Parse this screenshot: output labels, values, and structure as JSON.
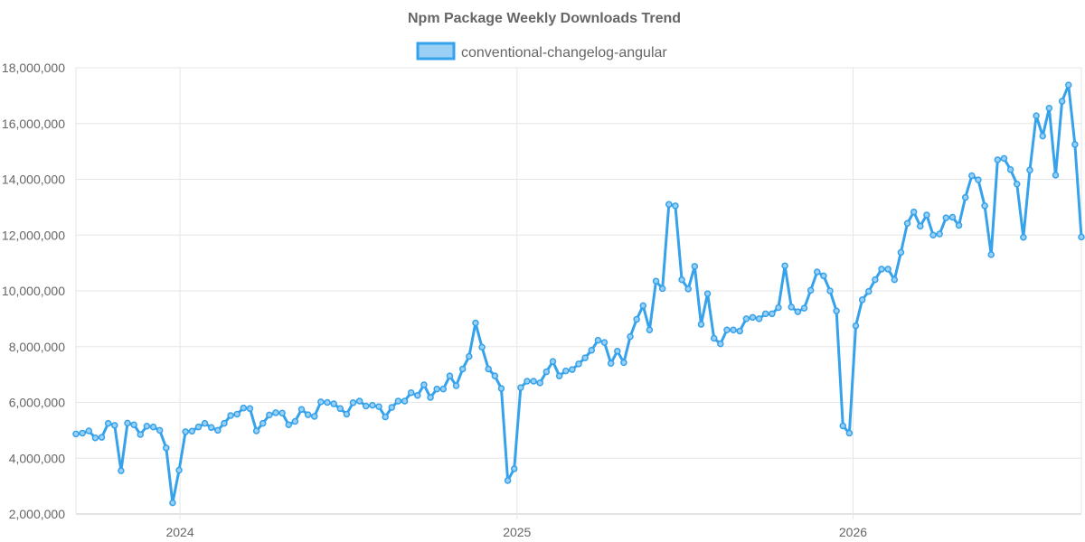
{
  "chart_data": {
    "type": "line",
    "title": "Npm Package Weekly Downloads Trend",
    "xlabel": "",
    "ylabel": "",
    "ylim": [
      2000000,
      18000000
    ],
    "y_ticks": [
      2000000,
      4000000,
      6000000,
      8000000,
      10000000,
      12000000,
      14000000,
      16000000,
      18000000
    ],
    "y_tick_labels": [
      "2,000,000",
      "4,000,000",
      "6,000,000",
      "8,000,000",
      "10,000,000",
      "12,000,000",
      "14,000,000",
      "16,000,000",
      "18,000,000"
    ],
    "x_ticks": [
      "2024",
      "2025",
      "2026"
    ],
    "x_start": "2023-09-10",
    "x_step_days": 7,
    "grid": true,
    "legend_position": "top",
    "series_color": "#36a2eb",
    "series_fill": "#9ad0f5",
    "series": [
      {
        "name": "conventional-changelog-angular",
        "values": [
          4870000,
          4900000,
          4980000,
          4730000,
          4750000,
          5250000,
          5180000,
          3550000,
          5260000,
          5200000,
          4850000,
          5150000,
          5120000,
          5000000,
          4370000,
          2400000,
          3570000,
          4950000,
          4970000,
          5120000,
          5250000,
          5100000,
          5000000,
          5250000,
          5530000,
          5580000,
          5800000,
          5780000,
          4980000,
          5250000,
          5550000,
          5630000,
          5620000,
          5200000,
          5320000,
          5750000,
          5560000,
          5500000,
          6020000,
          6000000,
          5950000,
          5780000,
          5580000,
          5990000,
          6050000,
          5870000,
          5900000,
          5850000,
          5480000,
          5820000,
          6050000,
          6050000,
          6350000,
          6250000,
          6630000,
          6180000,
          6480000,
          6480000,
          6950000,
          6600000,
          7200000,
          7650000,
          8850000,
          7980000,
          7200000,
          6950000,
          6500000,
          3200000,
          3620000,
          6530000,
          6760000,
          6760000,
          6700000,
          7100000,
          7470000,
          6950000,
          7130000,
          7180000,
          7380000,
          7600000,
          7870000,
          8230000,
          8150000,
          7400000,
          7840000,
          7430000,
          8360000,
          8980000,
          9470000,
          8600000,
          10350000,
          10080000,
          13100000,
          13050000,
          10400000,
          10070000,
          10880000,
          8800000,
          9900000,
          8300000,
          8100000,
          8600000,
          8600000,
          8560000,
          9000000,
          9050000,
          9000000,
          9180000,
          9180000,
          9400000,
          10900000,
          9420000,
          9250000,
          9380000,
          10020000,
          10680000,
          10540000,
          10000000,
          9280000,
          5160000,
          4900000,
          8750000,
          9680000,
          9980000,
          10400000,
          10780000,
          10780000,
          10400000,
          11380000,
          12420000,
          12830000,
          12320000,
          12720000,
          12000000,
          12040000,
          12620000,
          12640000,
          12350000,
          13350000,
          14130000,
          13980000,
          13050000,
          11300000,
          14700000,
          14750000,
          14350000,
          13830000,
          11920000,
          14330000,
          16280000,
          15550000,
          16550000,
          14150000,
          16800000,
          17380000,
          15250000,
          11930000
        ]
      }
    ]
  }
}
